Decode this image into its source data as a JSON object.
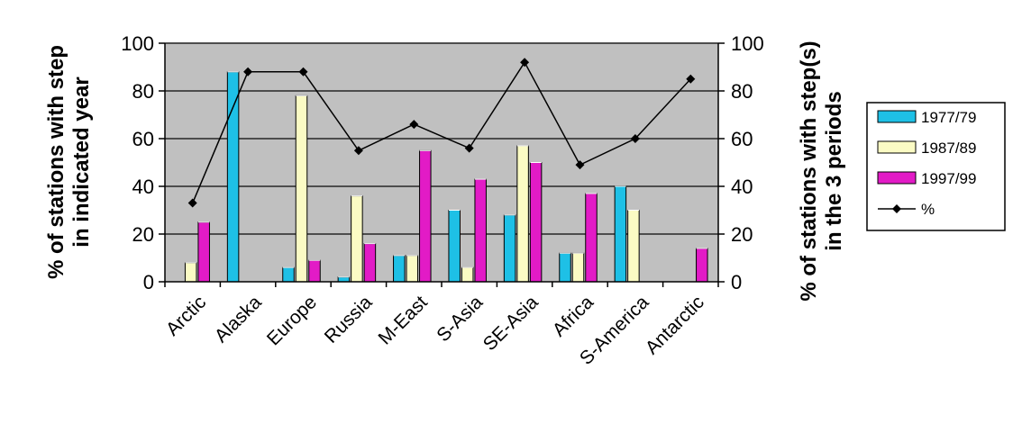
{
  "chart_data": {
    "type": "bar",
    "title": "",
    "categories": [
      "Arctic",
      "Alaska",
      "Europe",
      "Russia",
      "M-East",
      "S-Asia",
      "SE-Asia",
      "Africa",
      "S-America",
      "Antarctic"
    ],
    "series": [
      {
        "name": "1977/79",
        "type": "bar",
        "axis": "left",
        "color": "#1ec0e6",
        "values": [
          0,
          88,
          6,
          2,
          11,
          30,
          28,
          12,
          40,
          0
        ]
      },
      {
        "name": "1987/89",
        "type": "bar",
        "axis": "left",
        "color": "#fbfbc4",
        "values": [
          8,
          0,
          78,
          36,
          11,
          6,
          57,
          12,
          30,
          0
        ]
      },
      {
        "name": "1997/99",
        "type": "bar",
        "axis": "left",
        "color": "#e21bc6",
        "values": [
          25,
          0,
          9,
          16,
          55,
          43,
          50,
          37,
          0,
          14
        ]
      },
      {
        "name": "%",
        "type": "line",
        "axis": "right",
        "color": "#000000",
        "values": [
          33,
          88,
          88,
          55,
          66,
          56,
          92,
          49,
          60,
          85
        ]
      }
    ],
    "ylabel": "% of stations with step in indicated year",
    "y2label": "% of stations with step(s) in the 3 periods",
    "ylim": [
      0,
      100
    ],
    "y2lim": [
      0,
      100
    ],
    "yticks": [
      "0",
      "20",
      "40",
      "60",
      "80",
      "100"
    ],
    "grid": true,
    "plot_background": "#c0c0c0",
    "legend_position": "right"
  }
}
